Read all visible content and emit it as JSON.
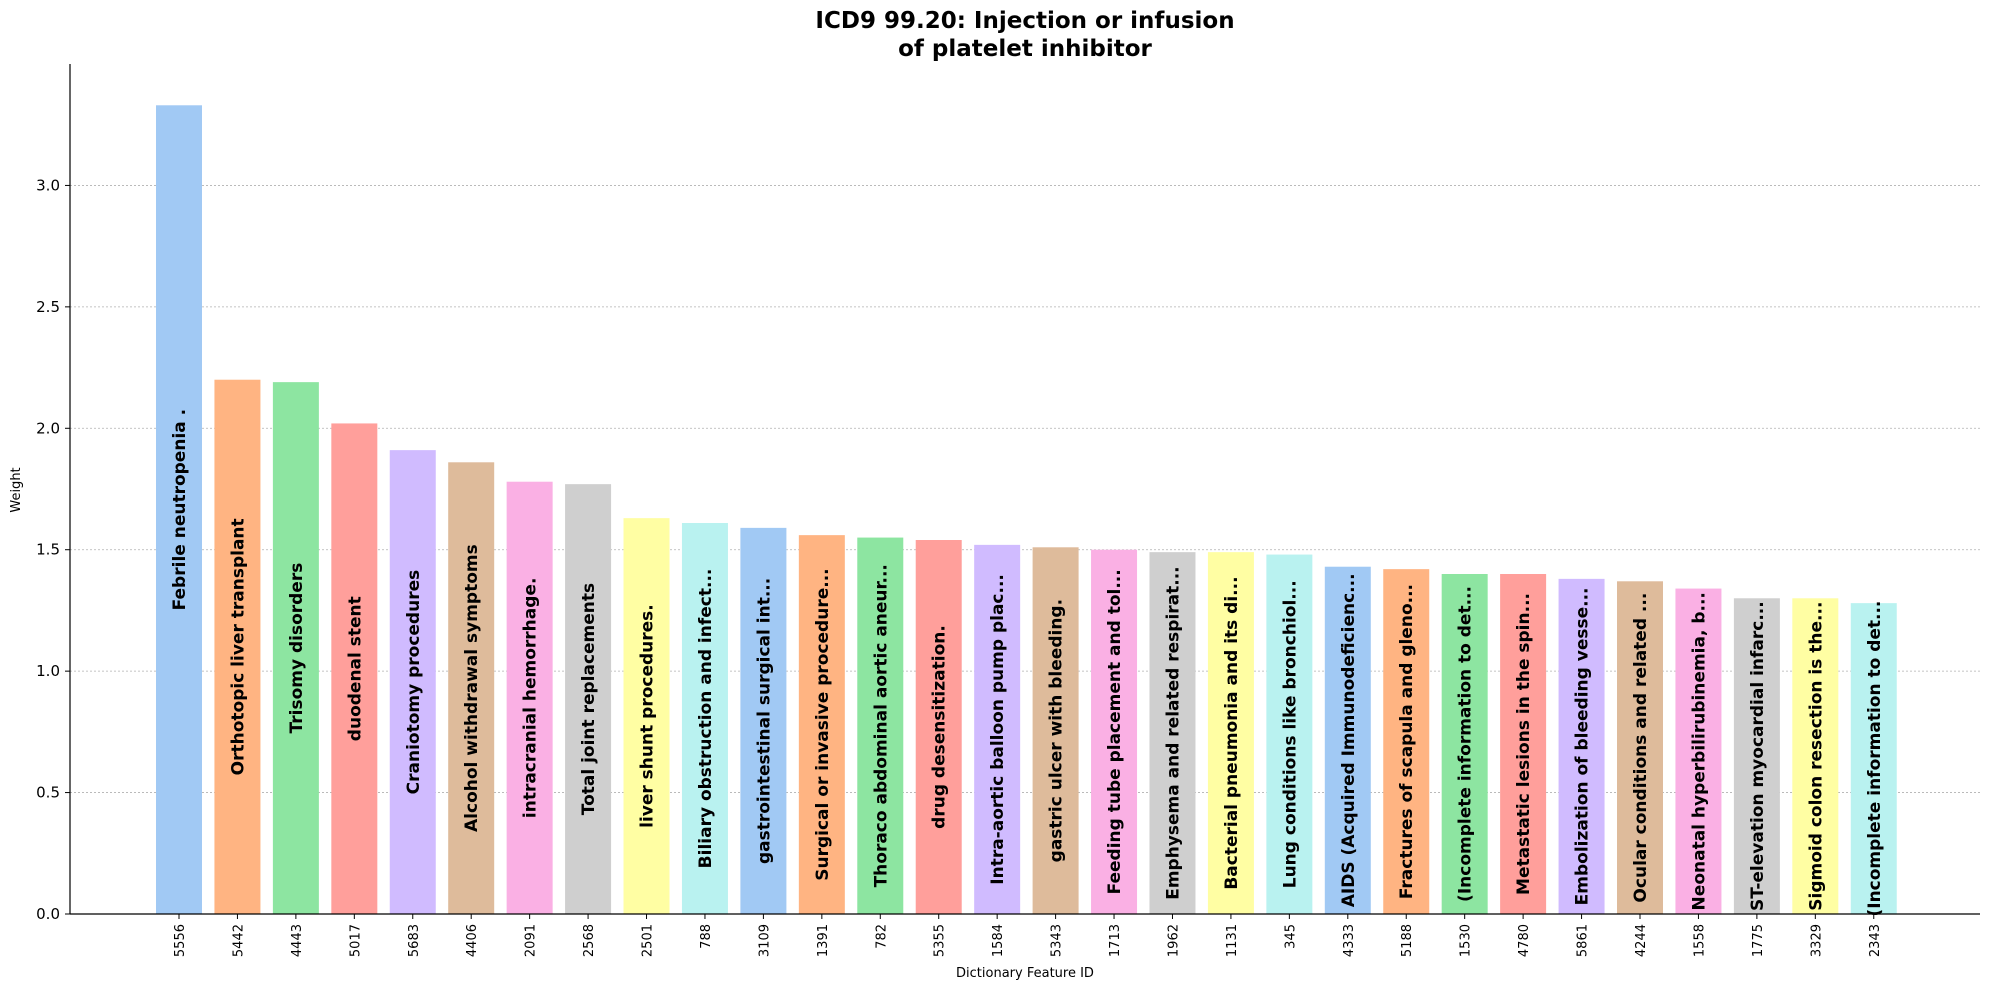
{
  "chart_data": {
    "type": "bar",
    "title_line1": "ICD9 99.20: Injection or infusion",
    "title_line2": "of platelet inhibitor",
    "xlabel": "Dictionary Feature ID",
    "ylabel": "Weight",
    "ylim": [
      0,
      3.5
    ],
    "yticks": [
      "0.0",
      "0.5",
      "1.0",
      "1.5",
      "2.0",
      "2.5",
      "3.0"
    ],
    "grid": "horizontal dotted",
    "categories": [
      "5556",
      "5442",
      "4443",
      "5017",
      "5683",
      "4406",
      "2091",
      "2568",
      "2501",
      "788",
      "3109",
      "1391",
      "782",
      "5355",
      "1584",
      "5343",
      "1713",
      "1962",
      "1131",
      "345",
      "4333",
      "5188",
      "1530",
      "4780",
      "5861",
      "4244",
      "1558",
      "1775",
      "3329",
      "2343"
    ],
    "values": [
      3.33,
      2.2,
      2.19,
      2.02,
      1.91,
      1.86,
      1.78,
      1.77,
      1.63,
      1.61,
      1.59,
      1.56,
      1.55,
      1.54,
      1.52,
      1.51,
      1.5,
      1.49,
      1.49,
      1.48,
      1.43,
      1.42,
      1.4,
      1.4,
      1.38,
      1.37,
      1.34,
      1.3,
      1.3,
      1.28
    ],
    "labels": [
      "Febrile neutropenia .",
      "Orthotopic liver transplant",
      "Trisomy disorders",
      "duodenal stent",
      "Craniotomy procedures",
      "Alcohol withdrawal symptoms",
      "intracranial hemorrhage.",
      "Total joint replacements",
      "liver shunt procedures.",
      "Biliary obstruction and infect...",
      "gastrointestinal surgical int...",
      "Surgical or invasive procedure...",
      "Thoraco abdominal aortic aneur...",
      "drug desensitization.",
      "Intra-aortic balloon pump plac...",
      "gastric ulcer with bleeding.",
      "Feeding tube placement and tol...",
      "Emphysema and related respirat...",
      "Bacterial pneumonia and its di...",
      "Lung conditions like bronchiol...",
      "AIDS (Acquired Immunodeficienc...",
      "Fractures of scapula and gleno...",
      "(Incomplete information to det...",
      "Metastatic lesions in the spin...",
      "Embolization of bleeding vesse...",
      "Ocular conditions and related ...",
      "Neonatal hyperbilirubinemia, b...",
      "ST-elevation myocardial infarc...",
      "Sigmoid colon resection is the...",
      "(Incomplete information to det..."
    ],
    "colors": [
      "#a1c9f4",
      "#ffb482",
      "#8de5a1",
      "#ff9f9b",
      "#d0bbff",
      "#debb9b",
      "#fab0e4",
      "#cfcfcf",
      "#fffea3",
      "#b9f2f0"
    ]
  }
}
